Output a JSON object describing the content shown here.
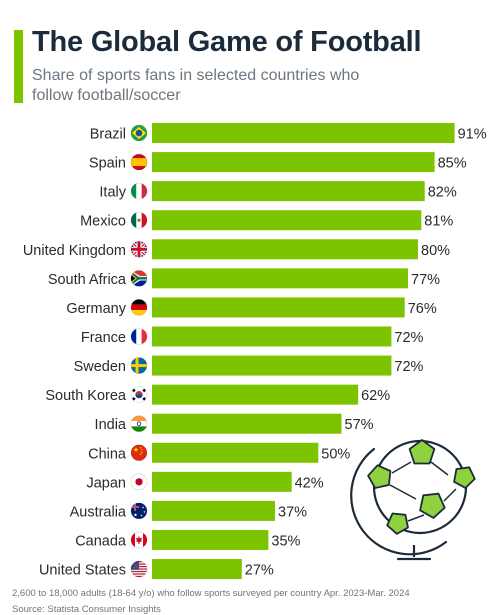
{
  "header": {
    "title": "The Global Game of Football",
    "subtitle": "Share of sports fans in selected countries who follow football/soccer"
  },
  "chart_data": {
    "type": "bar",
    "orientation": "horizontal",
    "categories": [
      "Brazil",
      "Spain",
      "Italy",
      "Mexico",
      "United Kingdom",
      "South Africa",
      "Germany",
      "France",
      "Sweden",
      "South Korea",
      "India",
      "China",
      "Japan",
      "Australia",
      "Canada",
      "United States"
    ],
    "values": [
      91,
      85,
      82,
      81,
      80,
      77,
      76,
      72,
      72,
      62,
      57,
      50,
      42,
      37,
      35,
      27
    ],
    "value_labels": [
      "91%",
      "85%",
      "82%",
      "81%",
      "80%",
      "77%",
      "76%",
      "72%",
      "72%",
      "62%",
      "57%",
      "50%",
      "42%",
      "37%",
      "35%",
      "27%"
    ],
    "flag_icons": [
      "brazil-flag-icon",
      "spain-flag-icon",
      "italy-flag-icon",
      "mexico-flag-icon",
      "uk-flag-icon",
      "south-africa-flag-icon",
      "germany-flag-icon",
      "france-flag-icon",
      "sweden-flag-icon",
      "south-korea-flag-icon",
      "india-flag-icon",
      "china-flag-icon",
      "japan-flag-icon",
      "australia-flag-icon",
      "canada-flag-icon",
      "usa-flag-icon"
    ],
    "xlim": [
      0,
      100
    ],
    "bar_color": "#7dc400",
    "grid": false,
    "title": "",
    "xlabel": "",
    "ylabel": ""
  },
  "illustration": {
    "icon": "football-globe-icon",
    "ball_color": "#8fd13f"
  },
  "footer": {
    "note": "2,600 to 18,000 adults (18-64 y/o) who follow sports surveyed per country Apr. 2023-Mar. 2024",
    "source": "Source: Statista Consumer Insights"
  },
  "colors": {
    "accent": "#7dc400",
    "title": "#1c2b3a",
    "text": "#2b2b2b",
    "muted": "#6b7680"
  }
}
